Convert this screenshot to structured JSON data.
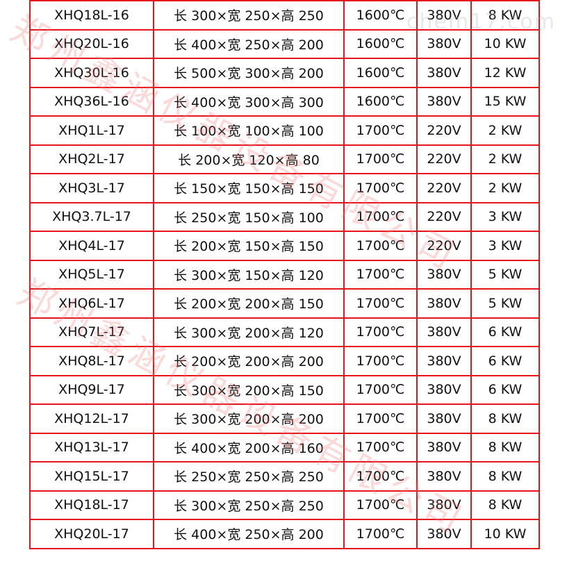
{
  "watermark": {
    "company": "郑州鑫涵仪器设备有限公司",
    "site": "chem17.com",
    "color": "#f07878"
  },
  "border_color": "#e8141c",
  "rows": [
    [
      "XHQ18L-16",
      "长 300×宽 250×高 250",
      "1600℃",
      "380V",
      "8 KW"
    ],
    [
      "XHQ20L-16",
      "长 400×宽 250×高 200",
      "1600℃",
      "380V",
      "10 KW"
    ],
    [
      "XHQ30L-16",
      "长 500×宽 300×高 200",
      "1600℃",
      "380V",
      "12 KW"
    ],
    [
      "XHQ36L-16",
      "长 400×宽 300×高 300",
      "1600℃",
      "380V",
      "15 KW"
    ],
    [
      "XHQ1L-17",
      "长 100×宽 100×高 100",
      "1700℃",
      "220V",
      "2 KW"
    ],
    [
      "XHQ2L-17",
      "长 200×宽 120×高 80",
      "1700℃",
      "220V",
      "2 KW"
    ],
    [
      "XHQ3L-17",
      "长 150×宽 150×高 150",
      "1700℃",
      "220V",
      "2 KW"
    ],
    [
      "XHQ3.7L-17",
      "长 250×宽 150×高 100",
      "1700℃",
      "220V",
      "3 KW"
    ],
    [
      "XHQ4L-17",
      "长 200×宽 150×高 150",
      "1700℃",
      "220V",
      "3 KW"
    ],
    [
      "XHQ5L-17",
      "长 300×宽 150×高 120",
      "1700℃",
      "380V",
      "5 KW"
    ],
    [
      "XHQ6L-17",
      "长 200×宽 200×高 150",
      "1700℃",
      "380V",
      "5 KW"
    ],
    [
      "XHQ7L-17",
      "长 300×宽 200×高 120",
      "1700℃",
      "380V",
      "6 KW"
    ],
    [
      "XHQ8L-17",
      "长 200×宽 200×高 200",
      "1700℃",
      "380V",
      "6 KW"
    ],
    [
      "XHQ9L-17",
      "长 300×宽 200×高 150",
      "1700℃",
      "380V",
      "6 KW"
    ],
    [
      "XHQ12L-17",
      "长 300×宽 200×高 200",
      "1700℃",
      "380V",
      "8 KW"
    ],
    [
      "XHQ13L-17",
      "长 400×宽 200×高 160",
      "1700℃",
      "380V",
      "8 KW"
    ],
    [
      "XHQ15L-17",
      "长 250×宽 250×高 250",
      "1700℃",
      "380V",
      "8 KW"
    ],
    [
      "XHQ18L-17",
      "长 300×宽 250×高 250",
      "1700℃",
      "380V",
      "8 KW"
    ],
    [
      "XHQ20L-17",
      "长 400×宽 250×高 200",
      "1700℃",
      "380V",
      "10 KW"
    ]
  ]
}
